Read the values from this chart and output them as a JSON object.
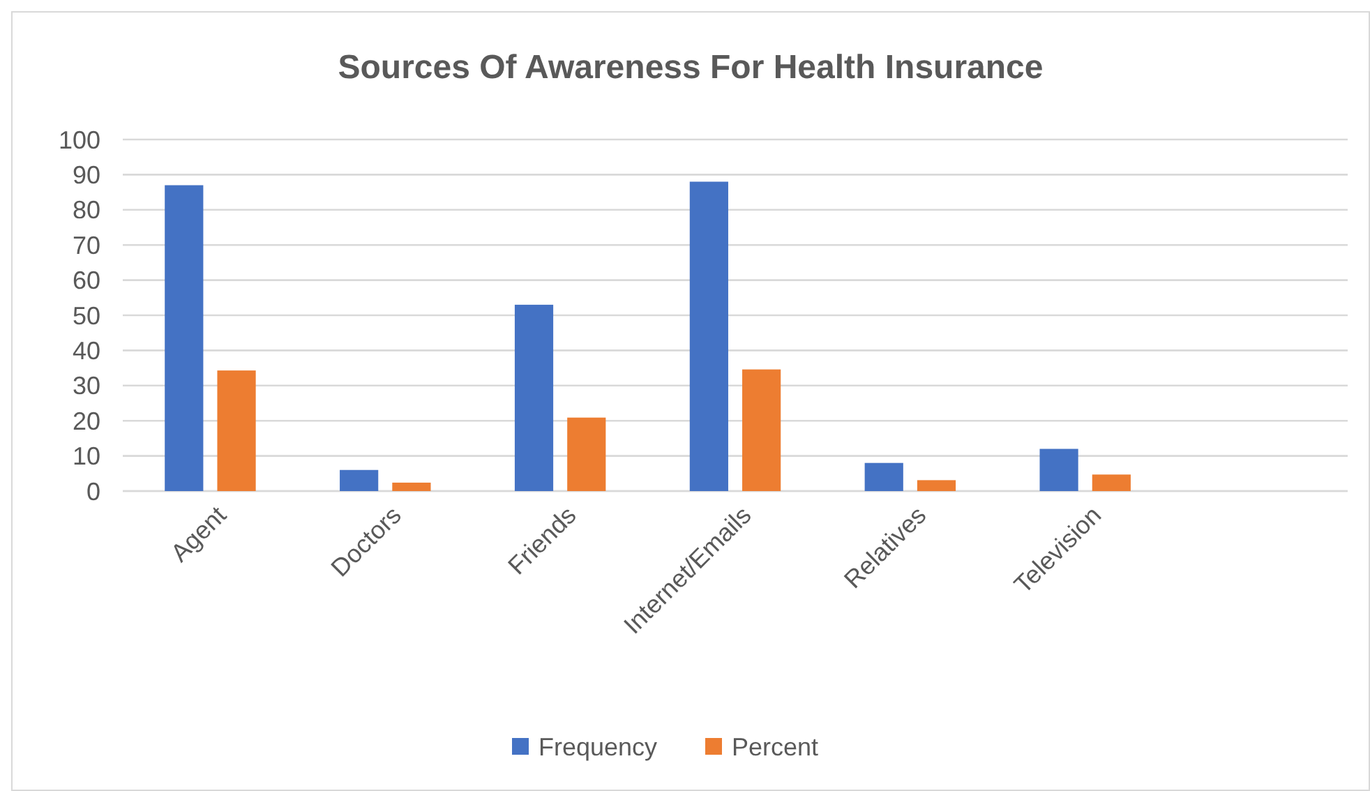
{
  "chart_data": {
    "type": "bar",
    "title": "Sources Of Awareness For Health Insurance",
    "categories": [
      "Agent",
      "Doctors",
      "Friends",
      "Internet/Emails",
      "Relatives",
      "Television",
      null
    ],
    "series": [
      {
        "name": "Frequency",
        "color": "#4472c4",
        "values": [
          87,
          6,
          53,
          88,
          8,
          12,
          null
        ]
      },
      {
        "name": "Percent",
        "color": "#ed7d31",
        "values": [
          34.3,
          2.4,
          20.9,
          34.6,
          3.1,
          4.7,
          null
        ]
      }
    ],
    "ylim": [
      0,
      100
    ],
    "yticks": [
      0,
      10,
      20,
      30,
      40,
      50,
      60,
      70,
      80,
      90,
      100
    ],
    "grid": "y",
    "legend": "bottom"
  }
}
